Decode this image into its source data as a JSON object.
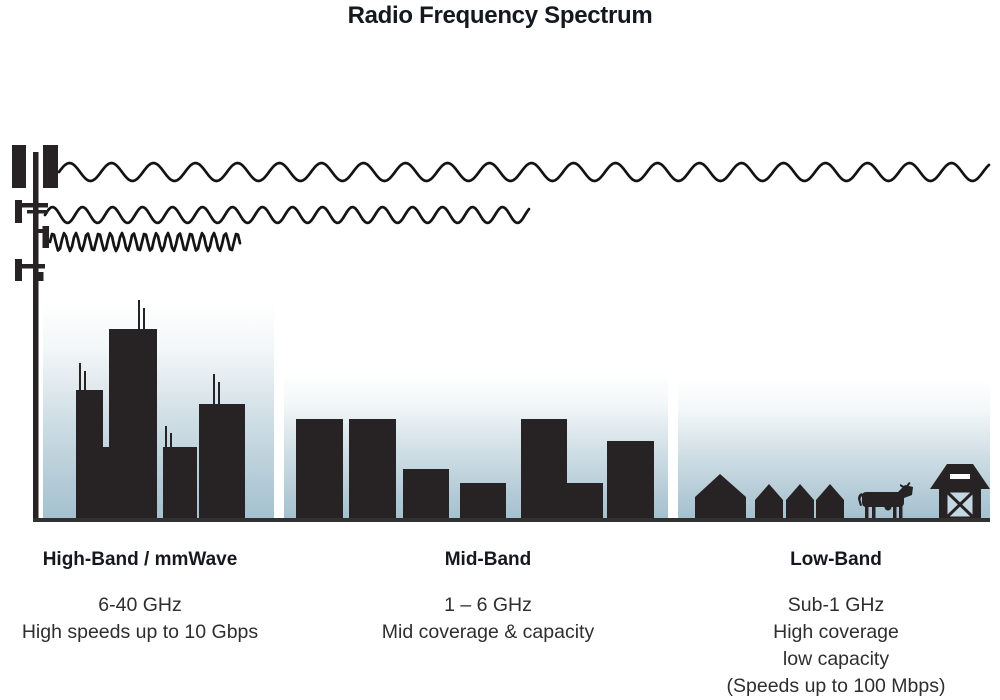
{
  "title": "Radio Frequency Spectrum",
  "colors": {
    "silhouette": "#272223",
    "sky_top": "#ffffff",
    "sky_bottom": "#a5c1cf",
    "ground": "#313131",
    "wave_stroke": "#141414",
    "heading_text": "#15181f",
    "body_text": "#2e2e2e",
    "barn_door_fill": "#c3d8e1"
  },
  "icons": {
    "tower": "cell-tower-icon",
    "long_wave": "long-wave-low-band-icon",
    "medium_wave": "medium-wave-mid-band-icon",
    "short_wave": "short-wave-high-band-icon",
    "city": "city-skyline",
    "suburb": "suburb-skyline",
    "houses": "rural-houses",
    "cow": "cow-icon",
    "barn": "barn-icon"
  },
  "sections": [
    {
      "id": "high-band",
      "heading": "High-Band / mmWave",
      "lines": [
        "6-40 GHz",
        "High speeds up to 10 Gbps"
      ]
    },
    {
      "id": "mid-band",
      "heading": "Mid-Band",
      "lines": [
        "1 – 6 GHz",
        "Mid coverage & capacity"
      ]
    },
    {
      "id": "low-band",
      "heading": "Low-Band",
      "lines": [
        "Sub-1 GHz",
        "High coverage",
        "low capacity",
        "(Speeds up to 100 Mbps)"
      ]
    }
  ]
}
